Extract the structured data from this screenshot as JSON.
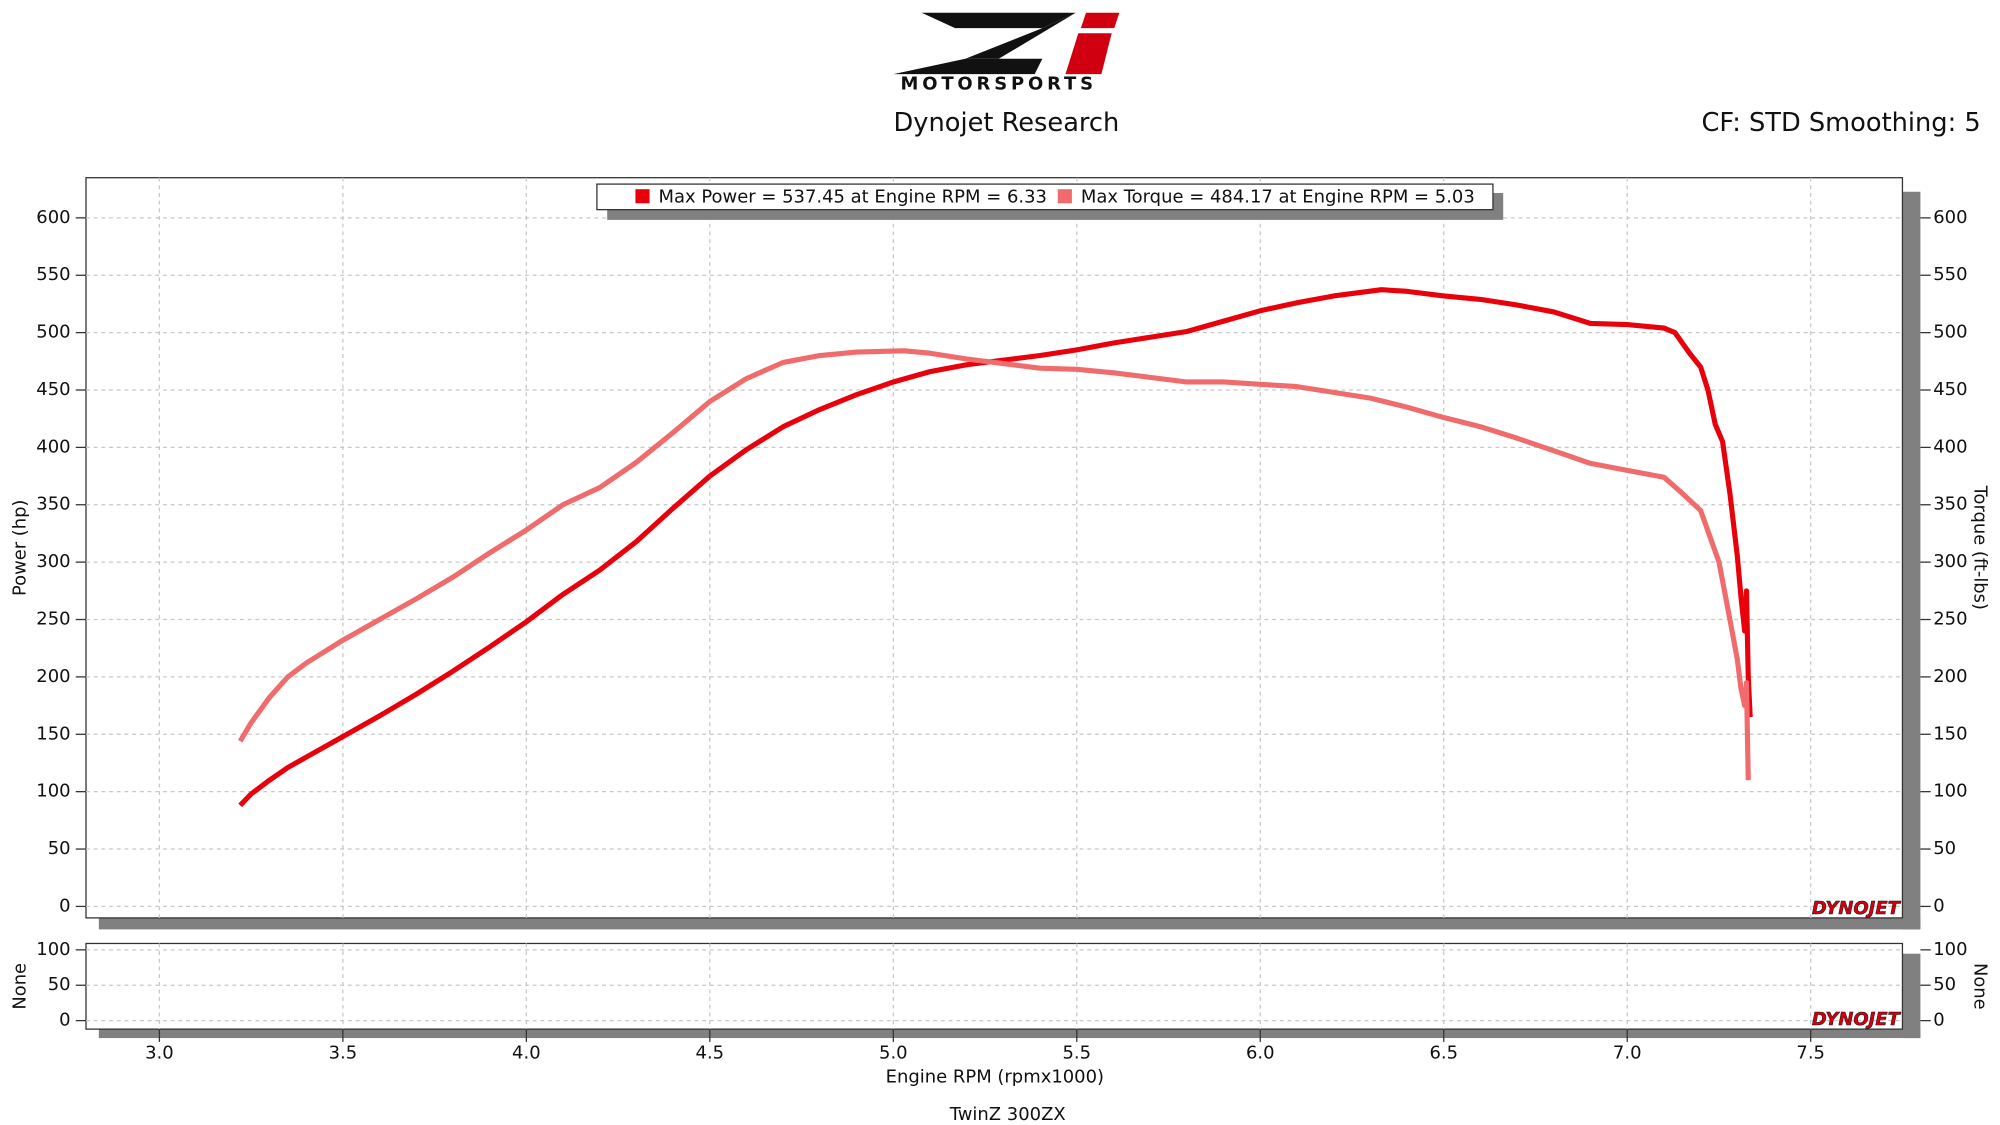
{
  "header": {
    "logo": "MOTORSPORTS",
    "title": "Dynojet Research",
    "settings": "CF: STD Smoothing: 5"
  },
  "chart_data": [
    {
      "type": "line",
      "y_label": "Power (hp)",
      "y2_label": "Torque (ft-lbs)",
      "watermark": "DYNOJET",
      "grid": true,
      "xlim": [
        2.8,
        7.75
      ],
      "ylim": [
        -10,
        635
      ],
      "y2lim": [
        -10,
        635
      ],
      "yticks": [
        0,
        50,
        100,
        150,
        200,
        250,
        300,
        350,
        400,
        450,
        500,
        550,
        600
      ],
      "y2ticks": [
        0,
        50,
        100,
        150,
        200,
        250,
        300,
        350,
        400,
        450,
        500,
        550,
        600
      ],
      "series": [
        {
          "name": "Max Power = 537.45 at Engine RPM = 6.33",
          "color": "#e8000b",
          "x": [
            3.22,
            3.25,
            3.3,
            3.35,
            3.4,
            3.5,
            3.6,
            3.7,
            3.8,
            3.9,
            4.0,
            4.1,
            4.2,
            4.3,
            4.4,
            4.5,
            4.6,
            4.7,
            4.8,
            4.9,
            5.0,
            5.1,
            5.2,
            5.3,
            5.4,
            5.5,
            5.6,
            5.7,
            5.8,
            5.9,
            6.0,
            6.1,
            6.2,
            6.33,
            6.4,
            6.5,
            6.6,
            6.7,
            6.8,
            6.9,
            7.0,
            7.1,
            7.13,
            7.17,
            7.2,
            7.22,
            7.24,
            7.26,
            7.28,
            7.3,
            7.31,
            7.32,
            7.325,
            7.33,
            7.335
          ],
          "values": [
            88,
            98,
            110,
            121,
            130,
            148,
            166,
            185,
            205,
            226,
            248,
            272,
            293,
            318,
            347,
            375,
            398,
            418,
            433,
            446,
            457,
            466,
            472,
            476,
            480,
            485,
            491,
            496,
            501,
            510,
            519,
            526,
            532,
            537.45,
            536,
            532,
            529,
            524,
            518,
            508,
            507,
            504,
            500,
            482,
            470,
            450,
            420,
            405,
            360,
            305,
            270,
            240,
            275,
            200,
            165
          ]
        },
        {
          "name": "Max Torque = 484.17 at Engine RPM = 5.03",
          "color": "#f06b6b",
          "x": [
            3.22,
            3.25,
            3.3,
            3.35,
            3.4,
            3.5,
            3.6,
            3.7,
            3.8,
            3.9,
            4.0,
            4.1,
            4.2,
            4.3,
            4.4,
            4.5,
            4.6,
            4.7,
            4.8,
            4.9,
            5.03,
            5.1,
            5.2,
            5.3,
            5.4,
            5.5,
            5.6,
            5.7,
            5.8,
            5.9,
            6.0,
            6.1,
            6.2,
            6.3,
            6.4,
            6.5,
            6.6,
            6.7,
            6.8,
            6.9,
            7.0,
            7.1,
            7.15,
            7.2,
            7.25,
            7.28,
            7.3,
            7.31,
            7.32,
            7.325,
            7.33
          ],
          "values": [
            144,
            160,
            182,
            200,
            212,
            232,
            250,
            268,
            287,
            308,
            328,
            350,
            365,
            387,
            413,
            440,
            460,
            474,
            480,
            483,
            484.17,
            482,
            477,
            473,
            469,
            468,
            465,
            461,
            457,
            457,
            455,
            453,
            448,
            443,
            435,
            426,
            418,
            408,
            397,
            386,
            380,
            374,
            360,
            345,
            300,
            250,
            215,
            190,
            175,
            195,
            110
          ]
        }
      ]
    },
    {
      "type": "line",
      "y_label": "None",
      "y2_label": "None",
      "watermark": "DYNOJET",
      "grid": true,
      "x_label": "Engine RPM (rpmx1000)",
      "caption": "TwinZ 300ZX",
      "xlim": [
        2.8,
        7.75
      ],
      "ylim": [
        -12,
        109
      ],
      "y2lim": [
        -12,
        109
      ],
      "yticks": [
        0,
        50,
        100
      ],
      "y2ticks": [
        0,
        50,
        100
      ],
      "xticks": [
        {
          "value": 3,
          "label": "3.0"
        },
        3.5,
        {
          "value": 4,
          "label": "4.0"
        },
        4.5,
        {
          "value": 5,
          "label": "5.0"
        },
        5.5,
        {
          "value": 6,
          "label": "6.0"
        },
        6.5,
        {
          "value": 7,
          "label": "7.0"
        },
        7.5
      ],
      "series": []
    }
  ]
}
